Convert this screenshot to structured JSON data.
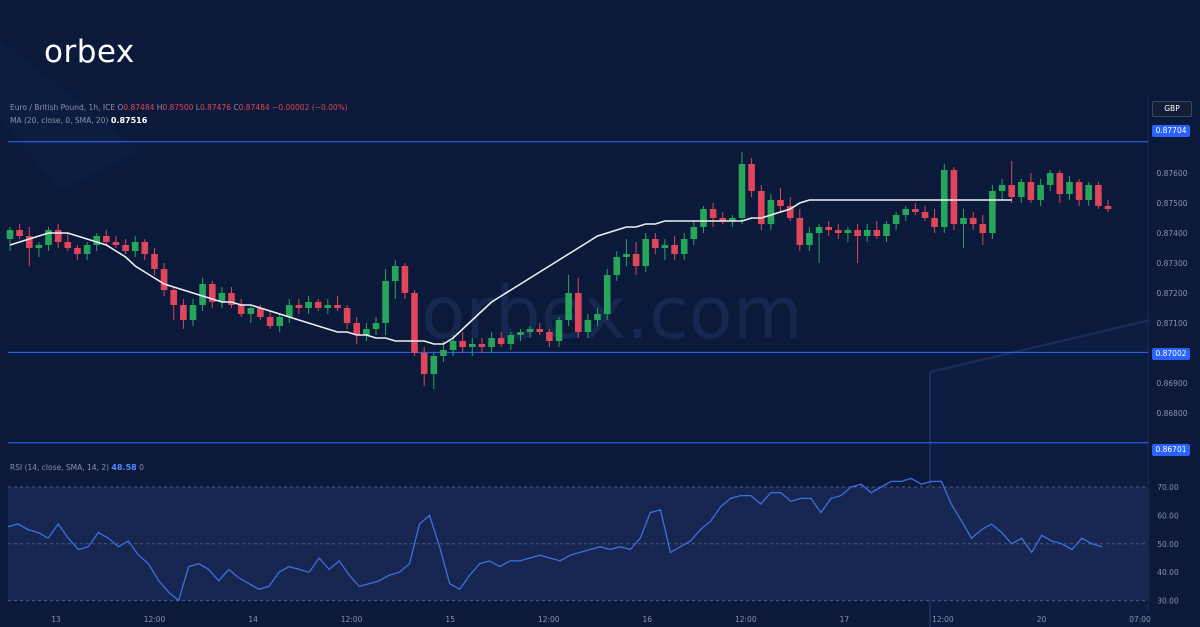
{
  "brand": {
    "logo_text": "orbex",
    "watermark": "orbex.com"
  },
  "header": {
    "symbol": "Euro / British Pound, 1h, ICE",
    "ohlc": {
      "o_label": "O",
      "o": "0.87484",
      "h_label": "H",
      "h": "0.87500",
      "l_label": "L",
      "l": "0.87476",
      "c_label": "C",
      "c": "0.87484",
      "change": "−0.00002 (−0.00%)"
    },
    "ma_label": "MA (20, close, 0, SMA, 20)",
    "ma_value": "0.87516",
    "rsi_label": "RSI (14, close, SMA, 14, 2)",
    "rsi_value": "48.58",
    "rsi_extra": "0"
  },
  "currency": "GBP",
  "levels": [
    {
      "name": "resistance",
      "value": 0.87704,
      "label": "0.87704"
    },
    {
      "name": "support",
      "value": 0.87002,
      "label": "0.87002"
    },
    {
      "name": "lower-support",
      "value": 0.86701,
      "label": "0.86701"
    }
  ],
  "colors": {
    "up": "#26a65b",
    "down": "#e0455a",
    "ma": "#f0f0f0",
    "rsi": "#3f6fe0",
    "level": "#3069ff"
  },
  "chart_data": [
    {
      "type": "candlestick",
      "y_axis_ticks": [
        "0.87600",
        "0.87500",
        "0.87400",
        "0.87300",
        "0.87200",
        "0.87100",
        "0.86900",
        "0.86800"
      ],
      "ylim": [
        0.8666,
        0.8776
      ],
      "x_axis_ticks": [
        "13",
        "12:00",
        "14",
        "12:00",
        "15",
        "12:00",
        "16",
        "12:00",
        "17",
        "12:00",
        "20",
        "07:00"
      ],
      "series": [
        {
          "name": "Euro / British Pound",
          "kind": "ohlc",
          "ohlc": [
            [
              0.8738,
              0.8742,
              0.8734,
              0.8741
            ],
            [
              0.8741,
              0.8743,
              0.8738,
              0.8739
            ],
            [
              0.8739,
              0.8742,
              0.8729,
              0.8735
            ],
            [
              0.8735,
              0.8737,
              0.8732,
              0.8736
            ],
            [
              0.8736,
              0.8742,
              0.8734,
              0.8741
            ],
            [
              0.8741,
              0.8743,
              0.8735,
              0.8737
            ],
            [
              0.8737,
              0.874,
              0.8734,
              0.8735
            ],
            [
              0.8735,
              0.8736,
              0.8731,
              0.8733
            ],
            [
              0.8733,
              0.8737,
              0.8731,
              0.8736
            ],
            [
              0.8736,
              0.874,
              0.8734,
              0.8739
            ],
            [
              0.8739,
              0.8741,
              0.8736,
              0.8737
            ],
            [
              0.8737,
              0.8739,
              0.8735,
              0.8736
            ],
            [
              0.8736,
              0.8738,
              0.8733,
              0.8734
            ],
            [
              0.8734,
              0.8739,
              0.8732,
              0.8737
            ],
            [
              0.8737,
              0.8738,
              0.8731,
              0.8733
            ],
            [
              0.8733,
              0.8735,
              0.8726,
              0.8728
            ],
            [
              0.8728,
              0.873,
              0.8719,
              0.8721
            ],
            [
              0.8721,
              0.8722,
              0.8711,
              0.8716
            ],
            [
              0.8716,
              0.8718,
              0.8708,
              0.8711
            ],
            [
              0.8711,
              0.8718,
              0.8709,
              0.8716
            ],
            [
              0.8716,
              0.8725,
              0.8714,
              0.8723
            ],
            [
              0.8723,
              0.8724,
              0.8715,
              0.8717
            ],
            [
              0.8717,
              0.8722,
              0.8715,
              0.872
            ],
            [
              0.872,
              0.8722,
              0.8715,
              0.8716
            ],
            [
              0.8716,
              0.8718,
              0.8712,
              0.8713
            ],
            [
              0.8713,
              0.8716,
              0.871,
              0.8715
            ],
            [
              0.8715,
              0.8716,
              0.8711,
              0.8712
            ],
            [
              0.8712,
              0.8714,
              0.8708,
              0.8709
            ],
            [
              0.8709,
              0.8713,
              0.8707,
              0.8712
            ],
            [
              0.8712,
              0.8718,
              0.871,
              0.8716
            ],
            [
              0.8716,
              0.8718,
              0.8713,
              0.8715
            ],
            [
              0.8715,
              0.8719,
              0.8713,
              0.8717
            ],
            [
              0.8717,
              0.8718,
              0.8714,
              0.8715
            ],
            [
              0.8715,
              0.8718,
              0.8713,
              0.8716
            ],
            [
              0.8716,
              0.8719,
              0.8714,
              0.8715
            ],
            [
              0.8715,
              0.8716,
              0.8708,
              0.871
            ],
            [
              0.871,
              0.8712,
              0.8703,
              0.8706
            ],
            [
              0.8706,
              0.871,
              0.8704,
              0.8708
            ],
            [
              0.8708,
              0.8712,
              0.8706,
              0.871
            ],
            [
              0.871,
              0.8728,
              0.8706,
              0.8724
            ],
            [
              0.8724,
              0.8731,
              0.8718,
              0.8729
            ],
            [
              0.8729,
              0.873,
              0.8718,
              0.872
            ],
            [
              0.872,
              0.8721,
              0.8699,
              0.87
            ],
            [
              0.87,
              0.8702,
              0.8689,
              0.8693
            ],
            [
              0.8693,
              0.87,
              0.8688,
              0.8699
            ],
            [
              0.8699,
              0.8704,
              0.8697,
              0.8701
            ],
            [
              0.8701,
              0.8706,
              0.8699,
              0.8704
            ],
            [
              0.8704,
              0.8707,
              0.87,
              0.8702
            ],
            [
              0.8702,
              0.8705,
              0.8699,
              0.8703
            ],
            [
              0.8703,
              0.8705,
              0.87,
              0.8702
            ],
            [
              0.8702,
              0.8707,
              0.87,
              0.8705
            ],
            [
              0.8705,
              0.8707,
              0.8702,
              0.8703
            ],
            [
              0.8703,
              0.8707,
              0.8701,
              0.8706
            ],
            [
              0.8706,
              0.8708,
              0.8704,
              0.8707
            ],
            [
              0.8707,
              0.8709,
              0.8705,
              0.8708
            ],
            [
              0.8708,
              0.871,
              0.8706,
              0.8707
            ],
            [
              0.8707,
              0.8708,
              0.8702,
              0.8704
            ],
            [
              0.8704,
              0.8712,
              0.8702,
              0.8711
            ],
            [
              0.8711,
              0.8726,
              0.8709,
              0.872
            ],
            [
              0.872,
              0.8725,
              0.8705,
              0.8707
            ],
            [
              0.8707,
              0.8713,
              0.8705,
              0.8711
            ],
            [
              0.8711,
              0.8715,
              0.8709,
              0.8713
            ],
            [
              0.8713,
              0.8728,
              0.8711,
              0.8726
            ],
            [
              0.8726,
              0.8734,
              0.8724,
              0.8732
            ],
            [
              0.8732,
              0.8738,
              0.8729,
              0.8733
            ],
            [
              0.8733,
              0.8737,
              0.8726,
              0.8729
            ],
            [
              0.8729,
              0.874,
              0.8727,
              0.8738
            ],
            [
              0.8738,
              0.874,
              0.8733,
              0.8735
            ],
            [
              0.8735,
              0.8738,
              0.8731,
              0.8736
            ],
            [
              0.8736,
              0.8739,
              0.8731,
              0.8733
            ],
            [
              0.8733,
              0.874,
              0.8731,
              0.8738
            ],
            [
              0.8738,
              0.8744,
              0.8736,
              0.8742
            ],
            [
              0.8742,
              0.8749,
              0.874,
              0.8748
            ],
            [
              0.8748,
              0.875,
              0.8742,
              0.8745
            ],
            [
              0.8745,
              0.8747,
              0.8743,
              0.8744
            ],
            [
              0.8744,
              0.8746,
              0.8742,
              0.8745
            ],
            [
              0.8745,
              0.8767,
              0.8743,
              0.8763
            ],
            [
              0.8763,
              0.8765,
              0.8752,
              0.8754
            ],
            [
              0.8754,
              0.8756,
              0.8741,
              0.8743
            ],
            [
              0.8743,
              0.8753,
              0.8741,
              0.8751
            ],
            [
              0.8751,
              0.8755,
              0.8747,
              0.8749
            ],
            [
              0.8749,
              0.8752,
              0.8744,
              0.8745
            ],
            [
              0.8745,
              0.8748,
              0.8734,
              0.8736
            ],
            [
              0.8736,
              0.8742,
              0.8734,
              0.874
            ],
            [
              0.874,
              0.8743,
              0.873,
              0.8742
            ],
            [
              0.8742,
              0.8744,
              0.8739,
              0.8741
            ],
            [
              0.8741,
              0.8743,
              0.8738,
              0.874
            ],
            [
              0.874,
              0.8742,
              0.8737,
              0.8741
            ],
            [
              0.8741,
              0.8743,
              0.873,
              0.8739
            ],
            [
              0.8739,
              0.8743,
              0.8737,
              0.8741
            ],
            [
              0.8741,
              0.8744,
              0.8738,
              0.8739
            ],
            [
              0.8739,
              0.8744,
              0.8737,
              0.8743
            ],
            [
              0.8743,
              0.8747,
              0.8741,
              0.8746
            ],
            [
              0.8746,
              0.8749,
              0.8744,
              0.8748
            ],
            [
              0.8748,
              0.875,
              0.8746,
              0.8747
            ],
            [
              0.8747,
              0.8749,
              0.8744,
              0.8745
            ],
            [
              0.8745,
              0.8748,
              0.874,
              0.8742
            ],
            [
              0.8742,
              0.8763,
              0.874,
              0.8761
            ],
            [
              0.8761,
              0.8762,
              0.8741,
              0.8743
            ],
            [
              0.8743,
              0.8748,
              0.8735,
              0.8745
            ],
            [
              0.8745,
              0.8747,
              0.8741,
              0.8743
            ],
            [
              0.8743,
              0.8746,
              0.8736,
              0.874
            ],
            [
              0.874,
              0.8756,
              0.8738,
              0.8754
            ],
            [
              0.8754,
              0.8758,
              0.8751,
              0.8756
            ],
            [
              0.8756,
              0.8764,
              0.875,
              0.8752
            ],
            [
              0.8752,
              0.8758,
              0.875,
              0.8757
            ],
            [
              0.8757,
              0.876,
              0.875,
              0.8751
            ],
            [
              0.8751,
              0.8758,
              0.8749,
              0.8756
            ],
            [
              0.8756,
              0.8761,
              0.8754,
              0.876
            ],
            [
              0.876,
              0.8761,
              0.875,
              0.8753
            ],
            [
              0.8753,
              0.8759,
              0.8751,
              0.8757
            ],
            [
              0.8757,
              0.8758,
              0.8749,
              0.8751
            ],
            [
              0.8751,
              0.8757,
              0.8749,
              0.8756
            ],
            [
              0.8756,
              0.8757,
              0.8748,
              0.8749
            ],
            [
              0.8749,
              0.8751,
              0.8747,
              0.8748
            ]
          ]
        },
        {
          "name": "MA (20, close, 0, SMA, 20)",
          "kind": "line",
          "values": [
            0.8736,
            0.8737,
            0.8738,
            0.8739,
            0.874,
            0.874,
            0.874,
            0.8739,
            0.8738,
            0.8737,
            0.8736,
            0.8734,
            0.8732,
            0.8729,
            0.8727,
            0.8725,
            0.8723,
            0.8722,
            0.8721,
            0.872,
            0.8719,
            0.8718,
            0.8717,
            0.8717,
            0.8716,
            0.8716,
            0.8715,
            0.8714,
            0.8713,
            0.8712,
            0.8711,
            0.871,
            0.8709,
            0.8708,
            0.8707,
            0.8707,
            0.8706,
            0.8706,
            0.8705,
            0.8705,
            0.8704,
            0.8704,
            0.8704,
            0.8704,
            0.8703,
            0.8703,
            0.8705,
            0.8708,
            0.8711,
            0.8714,
            0.8717,
            0.8719,
            0.8721,
            0.8723,
            0.8725,
            0.8727,
            0.8729,
            0.8731,
            0.8733,
            0.8735,
            0.8737,
            0.8739,
            0.874,
            0.8741,
            0.8742,
            0.8742,
            0.8743,
            0.8743,
            0.8744,
            0.8744,
            0.8744,
            0.8744,
            0.8744,
            0.8744,
            0.8744,
            0.8744,
            0.8744,
            0.8745,
            0.8745,
            0.8746,
            0.8747,
            0.8748,
            0.875,
            0.8751,
            0.8751,
            0.8751,
            0.8751,
            0.8751,
            0.8751,
            0.8751,
            0.8751,
            0.8751,
            0.8751,
            0.8751,
            0.8751,
            0.8751,
            0.8751,
            0.8751,
            0.8751,
            0.8751,
            0.8751,
            0.8751,
            0.8751,
            0.8751,
            0.8751
          ]
        }
      ]
    },
    {
      "type": "line",
      "y_axis_ticks": [
        "70.00",
        "60.00",
        "50.00",
        "40.00",
        "30.00"
      ],
      "ylim": [
        26,
        76
      ],
      "band": [
        30,
        70
      ],
      "series": [
        {
          "name": "RSI (14, close, SMA, 14, 2)",
          "values": [
            56,
            57,
            55,
            54,
            52,
            57,
            52,
            48,
            49,
            54,
            52,
            49,
            51,
            46,
            43,
            37,
            33,
            30,
            42,
            43,
            41,
            37,
            41,
            38,
            36,
            34,
            35,
            40,
            42,
            41,
            40,
            45,
            41,
            44,
            39,
            35,
            36,
            37,
            39,
            40,
            43,
            57,
            60,
            49,
            36,
            34,
            39,
            43,
            44,
            42,
            44,
            44,
            45,
            46,
            45,
            44,
            46,
            47,
            48,
            49,
            48,
            49,
            48,
            52,
            61,
            62,
            47,
            49,
            51,
            55,
            58,
            63,
            66,
            67,
            67,
            64,
            68,
            68,
            65,
            66,
            66,
            61,
            66,
            67,
            70,
            71,
            68,
            70,
            72,
            72,
            73,
            71,
            72,
            72,
            64,
            58,
            52,
            55,
            57,
            54,
            50,
            52,
            47,
            53,
            51,
            50,
            48,
            52,
            50,
            49
          ]
        }
      ]
    }
  ]
}
